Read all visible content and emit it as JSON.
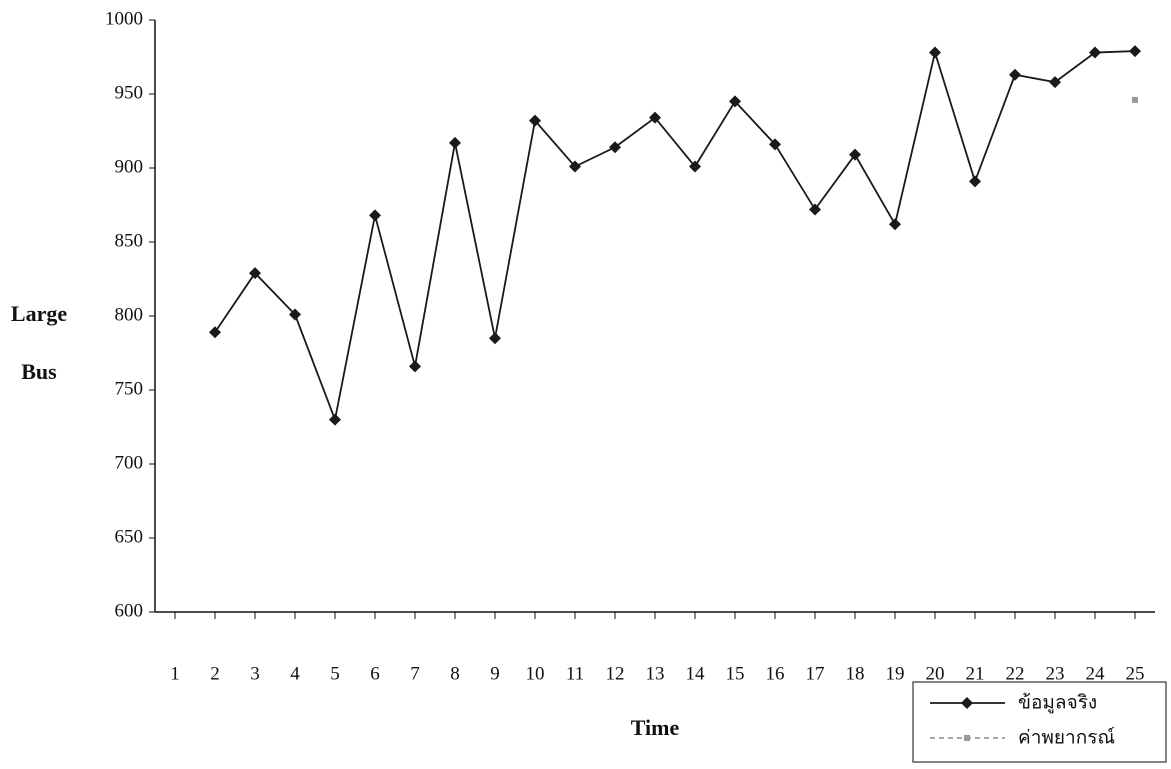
{
  "chart_data": {
    "type": "line",
    "y_label": "Large Bus",
    "x_label": "Time",
    "categories": [
      "1",
      "2",
      "3",
      "4",
      "5",
      "6",
      "7",
      "8",
      "9",
      "10",
      "11",
      "12",
      "13",
      "14",
      "15",
      "16",
      "17",
      "18",
      "19",
      "20",
      "21",
      "22",
      "23",
      "24",
      "25"
    ],
    "series": [
      {
        "name": "ข้อมูลจริง",
        "color": "#1a1a1a",
        "values": [
          null,
          789,
          829,
          801,
          730,
          868,
          766,
          917,
          785,
          932,
          901,
          914,
          934,
          901,
          945,
          916,
          872,
          909,
          862,
          978,
          891,
          963,
          958,
          978,
          979
        ]
      },
      {
        "name": "ค่าพยากรณ์",
        "color": "#999999",
        "values": [
          null,
          null,
          null,
          null,
          null,
          null,
          null,
          null,
          null,
          null,
          null,
          null,
          null,
          null,
          null,
          null,
          null,
          null,
          null,
          null,
          null,
          null,
          null,
          null,
          946
        ]
      }
    ],
    "ylim": [
      600,
      1000
    ],
    "yticks": [
      600,
      650,
      700,
      750,
      800,
      850,
      900,
      950,
      1000
    ]
  }
}
